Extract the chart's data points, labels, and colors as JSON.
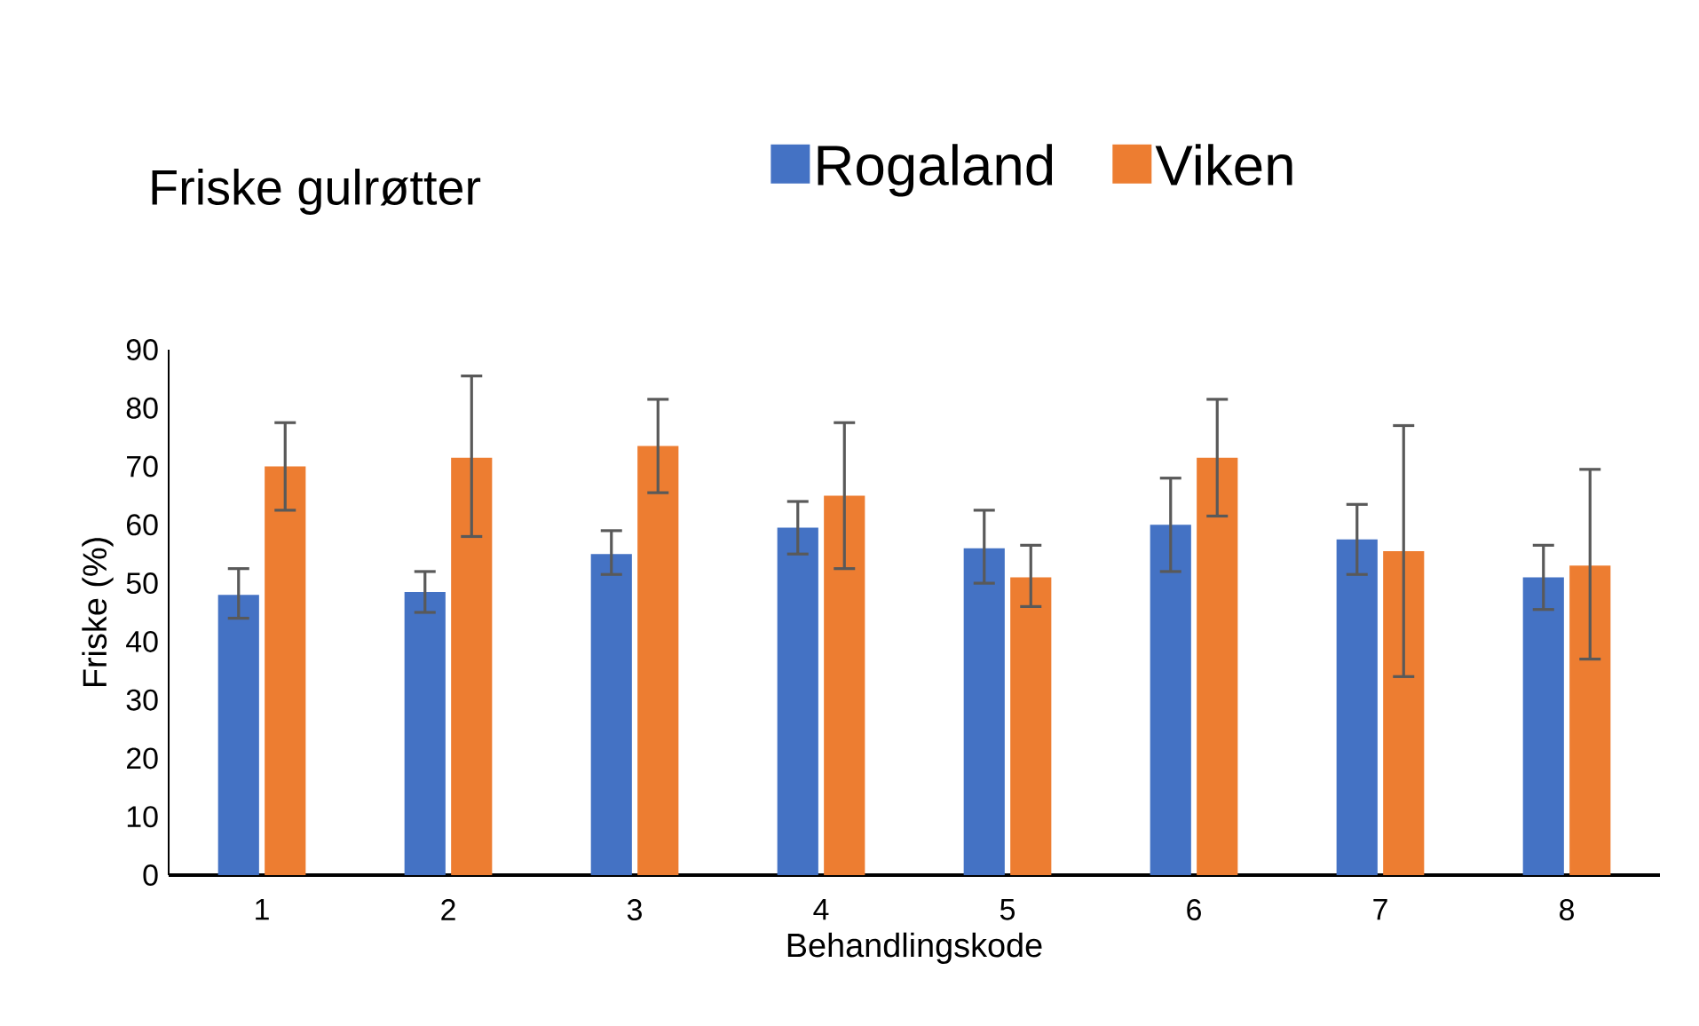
{
  "chart_data": {
    "type": "bar",
    "title": "Friske gulrøtter",
    "xlabel": "Behandlingskode",
    "ylabel": "Friske (%)",
    "categories": [
      "1",
      "2",
      "3",
      "4",
      "5",
      "6",
      "7",
      "8"
    ],
    "series": [
      {
        "name": "Rogaland",
        "color": "#4472c4",
        "values": [
          48,
          48.5,
          55,
          59.5,
          56,
          60,
          57.5,
          51
        ],
        "errors": [
          [
            44,
            52.5
          ],
          [
            45,
            52
          ],
          [
            51.5,
            59
          ],
          [
            55,
            64
          ],
          [
            50,
            62.5
          ],
          [
            52,
            68
          ],
          [
            51.5,
            63.5
          ],
          [
            45.5,
            56.5
          ]
        ]
      },
      {
        "name": "Viken",
        "color": "#ed7d31",
        "values": [
          70,
          71.5,
          73.5,
          65,
          51,
          71.5,
          55.5,
          53
        ],
        "errors": [
          [
            62.5,
            77.5
          ],
          [
            58,
            85.5
          ],
          [
            65.5,
            81.5
          ],
          [
            52.5,
            77.5
          ],
          [
            46,
            56.5
          ],
          [
            61.5,
            81.5
          ],
          [
            34,
            77
          ],
          [
            37,
            69.5
          ]
        ]
      }
    ],
    "ylim": [
      0,
      90
    ],
    "yticks": [
      0,
      10,
      20,
      30,
      40,
      50,
      60,
      70,
      80,
      90
    ],
    "legend": "top"
  }
}
